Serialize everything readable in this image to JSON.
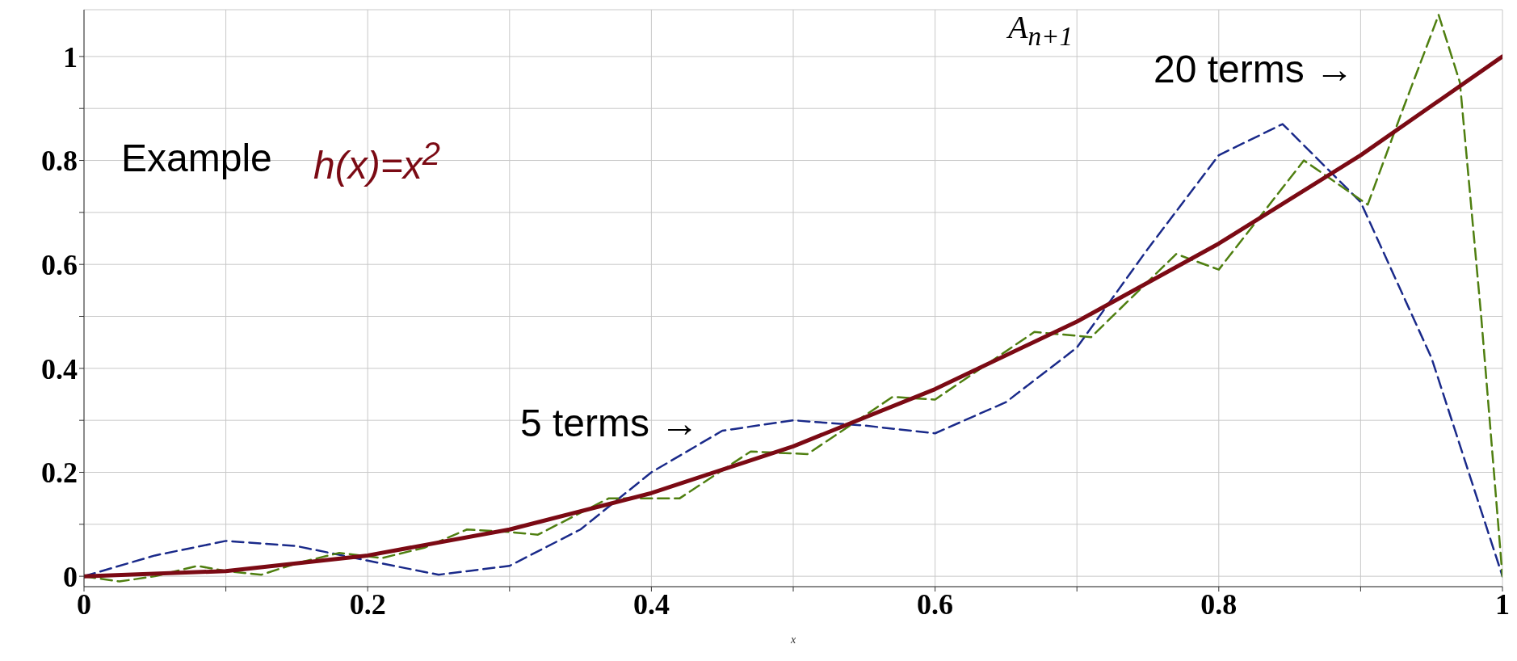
{
  "chart_data": {
    "type": "line",
    "xlabel": "x",
    "annotations": [
      "Example",
      "A$_{n+1}$"
    ],
    "xlim": [
      0,
      1
    ],
    "ylim": [
      -0.02,
      1.09
    ],
    "xticks": [
      0,
      {
        "value": 0.1,
        "label": null
      },
      0.2,
      {
        "value": 0.3,
        "label": null
      },
      0.4,
      {
        "value": 0.5,
        "label": null
      },
      0.6,
      {
        "value": 0.7,
        "label": null
      },
      0.8,
      {
        "value": 0.9,
        "label": null
      },
      1
    ],
    "yticks": [
      0,
      {
        "value": 0.1,
        "label": null
      },
      0.2,
      {
        "value": 0.3,
        "label": null
      },
      0.4,
      {
        "value": 0.5,
        "label": null
      },
      0.6,
      {
        "value": 0.7,
        "label": null
      },
      0.8,
      {
        "value": 0.9,
        "label": null
      },
      1
    ],
    "grid": true,
    "marker": "none",
    "legend": false,
    "series": [
      {
        "name": "5 terms →",
        "color": "#1a2a8a",
        "line_style": "dashed",
        "x": [
          0,
          0.05,
          0.1,
          0.15,
          0.2,
          0.25,
          0.3,
          0.35,
          0.4,
          0.45,
          0.5,
          0.55,
          0.6,
          0.65,
          0.7,
          0.75,
          0.8,
          0.845,
          0.9,
          0.95,
          1
        ],
        "values": [
          0,
          0.04,
          0.068,
          0.058,
          0.03,
          0.003,
          0.02,
          0.09,
          0.2,
          0.28,
          0.3,
          0.29,
          0.275,
          0.335,
          0.44,
          0.63,
          0.81,
          0.87,
          0.72,
          0.42,
          0
        ]
      },
      {
        "name": "20 terms →",
        "color": "#4f7f10",
        "line_style": "dashed",
        "x": [
          0,
          0.025,
          0.05,
          0.08,
          0.1,
          0.125,
          0.15,
          0.18,
          0.21,
          0.24,
          0.27,
          0.3,
          0.32,
          0.37,
          0.42,
          0.47,
          0.51,
          0.57,
          0.6,
          0.67,
          0.71,
          0.77,
          0.8,
          0.86,
          0.905,
          0.93,
          0.955,
          0.97,
          0.985,
          1
        ],
        "values": [
          0,
          -0.01,
          0,
          0.02,
          0.01,
          0.003,
          0.025,
          0.045,
          0.035,
          0.055,
          0.09,
          0.085,
          0.08,
          0.15,
          0.15,
          0.24,
          0.235,
          0.345,
          0.34,
          0.47,
          0.46,
          0.62,
          0.59,
          0.8,
          0.715,
          0.9,
          1.08,
          0.95,
          0.5,
          0
        ]
      },
      {
        "name": "h(x)=x$^{2}$",
        "color": "#7b0a14",
        "line_style": "solid",
        "x": [
          0,
          0.1,
          0.2,
          0.3,
          0.4,
          0.5,
          0.6,
          0.7,
          0.8,
          0.9,
          1
        ],
        "values": [
          0,
          0.01,
          0.04,
          0.09,
          0.16,
          0.25,
          0.36,
          0.49,
          0.64,
          0.81,
          1
        ]
      }
    ]
  }
}
